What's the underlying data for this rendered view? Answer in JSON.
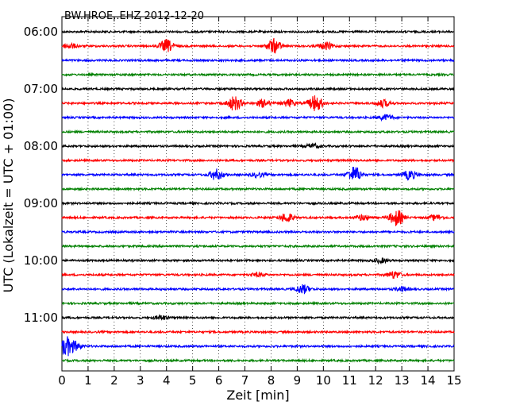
{
  "chart_data": {
    "type": "line",
    "title": "BW.HROE..EHZ 2012-12-20",
    "xlabel": "Zeit  [min]",
    "ylabel": "UTC (Lokalzeit = UTC + 01:00)",
    "xlim": [
      0,
      15
    ],
    "xticks": [
      "0",
      "1",
      "2",
      "3",
      "4",
      "5",
      "6",
      "7",
      "8",
      "9",
      "10",
      "11",
      "12",
      "13",
      "14",
      "15"
    ],
    "yticks": [
      "06:00",
      "07:00",
      "08:00",
      "09:00",
      "10:00",
      "11:00"
    ],
    "grid": "vertical dotted at each minute",
    "trace_colors": [
      "#000000",
      "#ff0000",
      "#0000ff",
      "#008000"
    ],
    "traces": [
      {
        "start": "06:00",
        "color": "#000000",
        "events": []
      },
      {
        "start": "06:15",
        "color": "#ff0000",
        "events": [
          [
            0.3,
            1.5
          ],
          [
            4.0,
            3.5
          ],
          [
            8.1,
            4.0
          ],
          [
            10.1,
            2.0
          ]
        ]
      },
      {
        "start": "06:30",
        "color": "#0000ff",
        "events": []
      },
      {
        "start": "06:45",
        "color": "#008000",
        "events": []
      },
      {
        "start": "07:00",
        "color": "#000000",
        "events": []
      },
      {
        "start": "07:15",
        "color": "#ff0000",
        "events": [
          [
            6.6,
            4.0
          ],
          [
            7.7,
            2.0
          ],
          [
            8.7,
            2.0
          ],
          [
            9.7,
            4.5
          ],
          [
            12.3,
            2.0
          ]
        ]
      },
      {
        "start": "07:30",
        "color": "#0000ff",
        "events": [
          [
            12.4,
            1.5
          ]
        ]
      },
      {
        "start": "07:45",
        "color": "#008000",
        "events": []
      },
      {
        "start": "08:00",
        "color": "#000000",
        "events": [
          [
            9.6,
            1.2
          ]
        ]
      },
      {
        "start": "08:15",
        "color": "#ff0000",
        "events": []
      },
      {
        "start": "08:30",
        "color": "#0000ff",
        "events": [
          [
            5.9,
            3.0
          ],
          [
            7.5,
            1.2
          ],
          [
            11.2,
            4.5
          ],
          [
            13.3,
            2.5
          ]
        ]
      },
      {
        "start": "08:45",
        "color": "#008000",
        "events": []
      },
      {
        "start": "09:00",
        "color": "#000000",
        "events": []
      },
      {
        "start": "09:15",
        "color": "#ff0000",
        "events": [
          [
            8.6,
            2.5
          ],
          [
            11.5,
            1.5
          ],
          [
            12.8,
            4.5
          ],
          [
            14.3,
            1.5
          ]
        ]
      },
      {
        "start": "09:30",
        "color": "#0000ff",
        "events": []
      },
      {
        "start": "09:45",
        "color": "#008000",
        "events": []
      },
      {
        "start": "10:00",
        "color": "#000000",
        "events": [
          [
            12.2,
            1.2
          ]
        ]
      },
      {
        "start": "10:15",
        "color": "#ff0000",
        "events": [
          [
            7.5,
            1.0
          ],
          [
            12.7,
            2.0
          ]
        ]
      },
      {
        "start": "10:30",
        "color": "#0000ff",
        "events": [
          [
            9.2,
            2.5
          ],
          [
            13.0,
            1.2
          ]
        ]
      },
      {
        "start": "10:45",
        "color": "#008000",
        "events": []
      },
      {
        "start": "11:00",
        "color": "#000000",
        "events": [
          [
            3.8,
            1.2
          ]
        ]
      },
      {
        "start": "11:15",
        "color": "#ff0000",
        "events": []
      },
      {
        "start": "11:30",
        "color": "#0000ff",
        "events": [
          [
            0.15,
            5.0
          ],
          [
            0.5,
            2.0
          ]
        ]
      },
      {
        "start": "11:45",
        "color": "#008000",
        "events": []
      }
    ]
  }
}
